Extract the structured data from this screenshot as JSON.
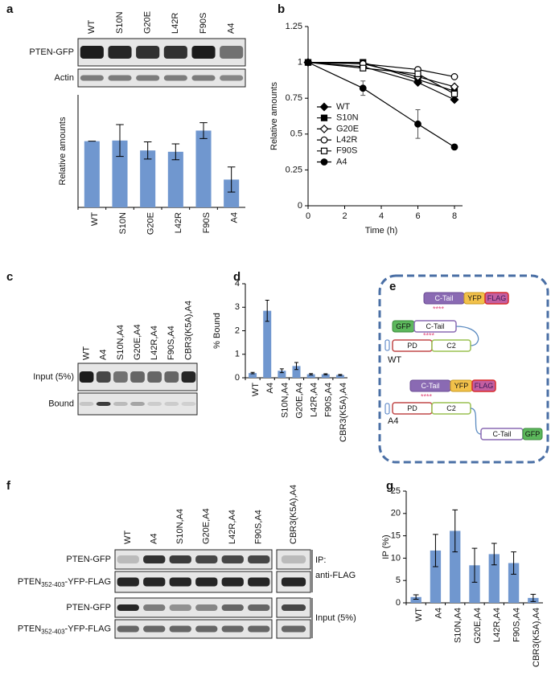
{
  "panel_labels": [
    "a",
    "b",
    "c",
    "d",
    "e",
    "f",
    "g"
  ],
  "blots": {
    "a": {
      "lanes": [
        "WT",
        "S10N",
        "G20E",
        "L42R",
        "F90S",
        "A4"
      ],
      "rows": [
        "PTEN-GFP",
        "Actin"
      ]
    },
    "c": {
      "lanes": [
        "WT",
        "A4",
        "S10N,A4",
        "G20E,A4",
        "L42R,A4",
        "F90S,A4",
        "CBR3(K5A),A4"
      ],
      "rows": [
        "Input (5%)",
        "Bound"
      ]
    },
    "f": {
      "lanes": [
        "WT",
        "A4",
        "S10N,A4",
        "G20E,A4",
        "L42R,A4",
        "F90S,A4",
        "CBR3(K5A),A4"
      ],
      "rows": [
        {
          "main": "PTEN-GFP"
        },
        {
          "main": "PTEN",
          "sub": "352-403",
          "rest": "-YFP-FLAG"
        },
        {
          "main": "PTEN-GFP"
        },
        {
          "main": "PTEN",
          "sub": "352-403",
          "rest": "-YFP-FLAG"
        }
      ],
      "ip_label": [
        "IP:",
        "anti-FLAG"
      ],
      "input_label": "Input (5%)"
    }
  },
  "diagram": {
    "probe_top": [
      "C-Tail",
      "YFP",
      "FLAG"
    ],
    "stars_top": "****",
    "wt": {
      "tail": [
        "GFP",
        "C-Tail"
      ],
      "stars": "****",
      "core": [
        "PD",
        "C2"
      ],
      "label": "WT"
    },
    "probe_bottom": [
      "C-Tail",
      "YFP",
      "FLAG"
    ],
    "stars_bottom": "****",
    "a4": {
      "core": [
        "PD",
        "C2"
      ],
      "tail": [
        "C-Tail",
        "GFP"
      ],
      "label": "A4"
    }
  },
  "chart_data": [
    {
      "type": "bar",
      "y_label": "Relative amounts",
      "categories": [
        "WT",
        "S10N",
        "G20E",
        "L42R",
        "F90S",
        "A4"
      ],
      "values": [
        1.0,
        1.01,
        0.86,
        0.84,
        1.16,
        0.42
      ],
      "errors": [
        0,
        0.24,
        0.13,
        0.12,
        0.12,
        0.19
      ],
      "color": "#7097cf",
      "ylim": [
        0,
        1.7
      ]
    },
    {
      "type": "line",
      "x_label": "Time (h)",
      "y_label": "Relative amounts",
      "x": [
        0,
        3,
        6,
        8
      ],
      "xlim": [
        0,
        8
      ],
      "xticks": [
        0,
        2,
        4,
        6,
        8
      ],
      "ylim": [
        0,
        1.25
      ],
      "yticks": [
        0,
        0.25,
        0.5,
        0.75,
        1,
        1.25
      ],
      "series": [
        {
          "name": "WT",
          "color": "#000000",
          "marker": "diamond",
          "marker_filled": true,
          "values": [
            1,
            0.97,
            0.86,
            0.74
          ]
        },
        {
          "name": "S10N",
          "color": "#000000",
          "marker": "square",
          "marker_filled": true,
          "values": [
            1,
            1.0,
            0.88,
            0.8
          ]
        },
        {
          "name": "G20E",
          "color": "#000000",
          "marker": "diamond",
          "marker_filled": false,
          "values": [
            1,
            0.99,
            0.9,
            0.83
          ]
        },
        {
          "name": "L42R",
          "color": "#000000",
          "marker": "circle",
          "marker_filled": false,
          "values": [
            1,
            0.99,
            0.95,
            0.9
          ]
        },
        {
          "name": "F90S",
          "color": "#000000",
          "marker": "square",
          "marker_filled": false,
          "values": [
            1,
            0.96,
            0.92,
            0.78
          ]
        },
        {
          "name": "A4",
          "color": "#000000",
          "marker": "circle",
          "marker_filled": true,
          "values": [
            1,
            0.82,
            0.57,
            0.41
          ],
          "errors": [
            0,
            0.05,
            0.1,
            0
          ]
        }
      ]
    },
    {
      "type": "bar",
      "y_label": "% Bound",
      "categories": [
        "WT",
        "A4",
        "S10N,A4",
        "G20E,A4",
        "L42R,A4",
        "F90S,A4",
        "CBR3(K5A),A4"
      ],
      "values": [
        0.2,
        2.85,
        0.3,
        0.5,
        0.15,
        0.15,
        0.12
      ],
      "errors": [
        0.03,
        0.45,
        0.08,
        0.15,
        0.03,
        0.02,
        0.02
      ],
      "color": "#7097cf",
      "ylim": [
        0,
        4
      ],
      "yticks": [
        0,
        1,
        2,
        3,
        4
      ]
    },
    {
      "type": "bar",
      "y_label": "IP (%)",
      "categories": [
        "WT",
        "A4",
        "S10N,A4",
        "G20E,A4",
        "L42R,A4",
        "F90S,A4",
        "CBR3(K5A),A4"
      ],
      "values": [
        1.3,
        11.7,
        16.1,
        8.4,
        10.9,
        8.9,
        1.1
      ],
      "errors": [
        0.5,
        3.6,
        4.7,
        3.8,
        2.4,
        2.5,
        0.8
      ],
      "color": "#7097cf",
      "ylim": [
        0,
        25
      ],
      "yticks": [
        0,
        5,
        10,
        15,
        20,
        25
      ]
    }
  ]
}
